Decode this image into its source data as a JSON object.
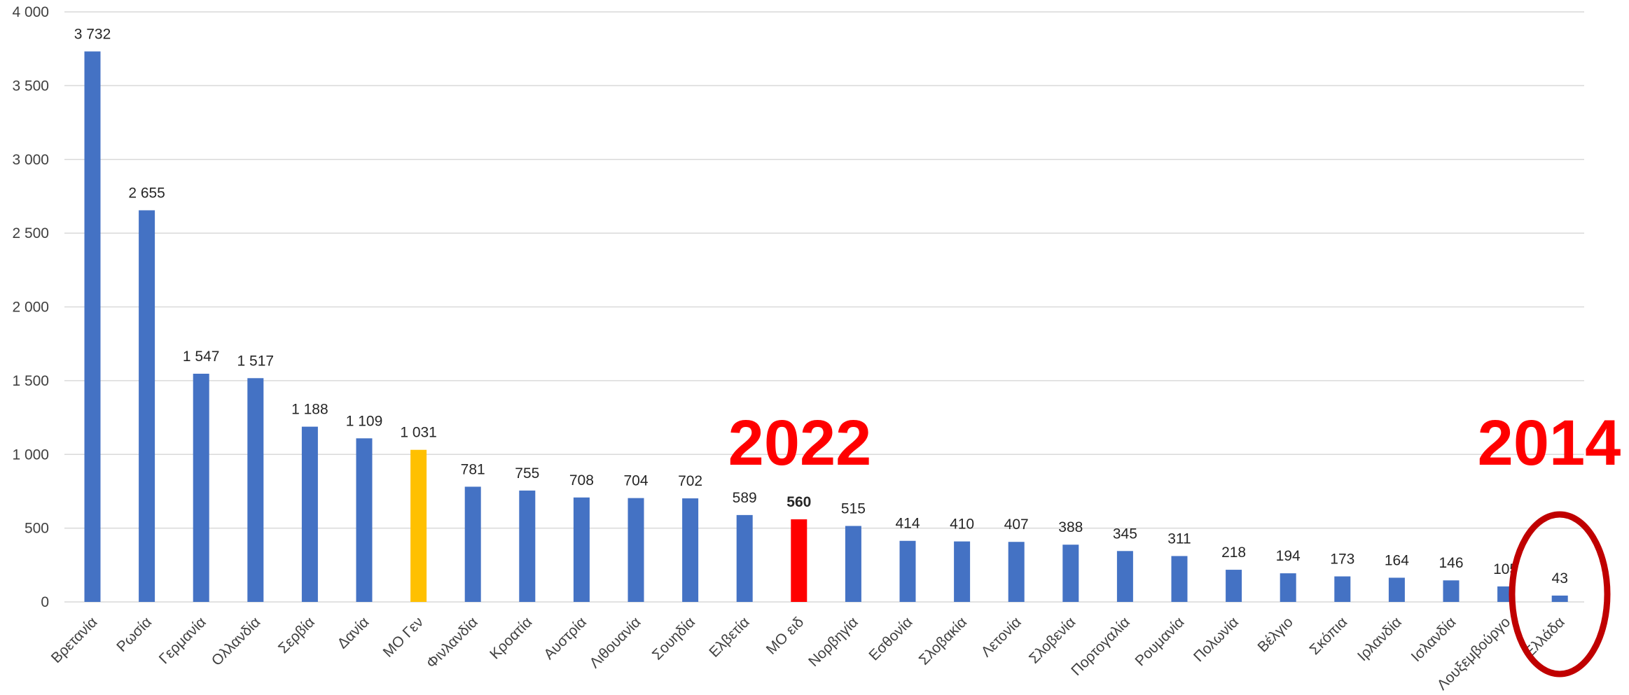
{
  "colors": {
    "default": "#4472c4",
    "highlight_gen": "#ffc000",
    "highlight_eid": "#ff0000",
    "grid": "#d9d9d9",
    "annotation": "#ff0000",
    "ellipse": "#c00000"
  },
  "annotations": {
    "year_left": "2022",
    "year_right": "2014"
  },
  "chart_data": {
    "type": "bar",
    "categories": [
      "Βρετανία",
      "Ρωσία",
      "Γερμανία",
      "Ολλανδία",
      "Σερβία",
      "Δανία",
      "ΜΟ Γεν",
      "Φινλανδία",
      "Κροατία",
      "Αυστρία",
      "Λιθουανία",
      "Σουηδία",
      "Ελβετία",
      "ΜΟ ειδ",
      "Νορβηγία",
      "Εσθονία",
      "Σλοβακία",
      "Λετονία",
      "Σλοβενία",
      "Πορτογαλία",
      "Ρουμανία",
      "Πολωνία",
      "Βέλγιο",
      "Σκόπια",
      "Ιρλανδία",
      "Ισλανδία",
      "Λουξεμβούργο",
      "Ελλάδα"
    ],
    "values": [
      3732,
      2655,
      1547,
      1517,
      1188,
      1109,
      1031,
      781,
      755,
      708,
      704,
      702,
      589,
      560,
      515,
      414,
      410,
      407,
      388,
      345,
      311,
      218,
      194,
      173,
      164,
      146,
      105,
      43
    ],
    "data_labels": [
      "3 732",
      "2 655",
      "1 547",
      "1 517",
      "1 188",
      "1 109",
      "1 031",
      "781",
      "755",
      "708",
      "704",
      "702",
      "589",
      "560",
      "515",
      "414",
      "410",
      "407",
      "388",
      "345",
      "311",
      "218",
      "194",
      "173",
      "164",
      "146",
      "105",
      "43"
    ],
    "highlights": {
      "ΜΟ Γεν": "#ffc000",
      "ΜΟ ειδ": "#ff0000"
    },
    "bold_labels": [
      "ΜΟ ειδ"
    ],
    "ylim": [
      0,
      4000
    ],
    "yticks": [
      0,
      500,
      1000,
      1500,
      2000,
      2500,
      3000,
      3500,
      4000
    ],
    "ytick_labels": [
      "0",
      "500",
      "1 000",
      "1 500",
      "2 000",
      "2 500",
      "3 000",
      "3 500",
      "4 000"
    ],
    "grid": true,
    "title": "",
    "xlabel": "",
    "ylabel": ""
  }
}
